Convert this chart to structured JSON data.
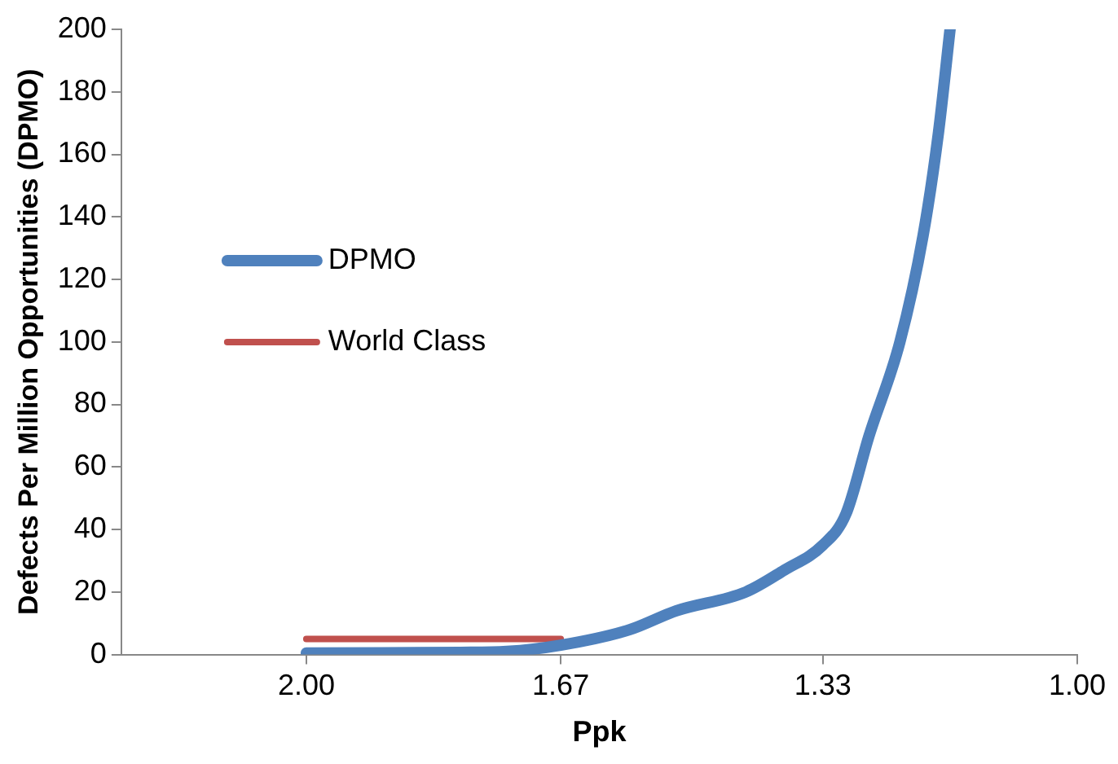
{
  "chart_data": {
    "type": "line",
    "xlabel": "Ppk",
    "ylabel": "Defects Per Million Opportunities (DPMO)",
    "xlim": [
      2.24,
      1.0
    ],
    "xticks": [
      {
        "value": 2,
        "label": "2.00"
      },
      {
        "value": 1.67,
        "label": "1.67"
      },
      {
        "value": 1.33,
        "label": "1.33"
      },
      {
        "value": 1,
        "label": "1.00"
      }
    ],
    "ylim": [
      0,
      200
    ],
    "yticks": [
      0,
      20,
      40,
      60,
      80,
      100,
      120,
      140,
      160,
      180,
      200
    ],
    "grid": false,
    "legend": "left",
    "marker": "none",
    "line_style": "solid",
    "series": [
      {
        "name": "DPMO",
        "color": "#4f81bd",
        "x": [
          2.0,
          1.8,
          1.74,
          1.67,
          1.58,
          1.52,
          1.43,
          1.38,
          1.33,
          1.3,
          1.27,
          1.23,
          1.2,
          1.18,
          1.165
        ],
        "values": [
          0.5,
          0.7,
          1,
          3,
          8,
          14,
          20,
          27,
          35,
          45,
          70,
          100,
          134,
          167,
          200
        ]
      },
      {
        "name": "World Class",
        "color": "#c0504d",
        "x": [
          2.0,
          1.67
        ],
        "values": [
          5,
          5
        ]
      }
    ]
  }
}
